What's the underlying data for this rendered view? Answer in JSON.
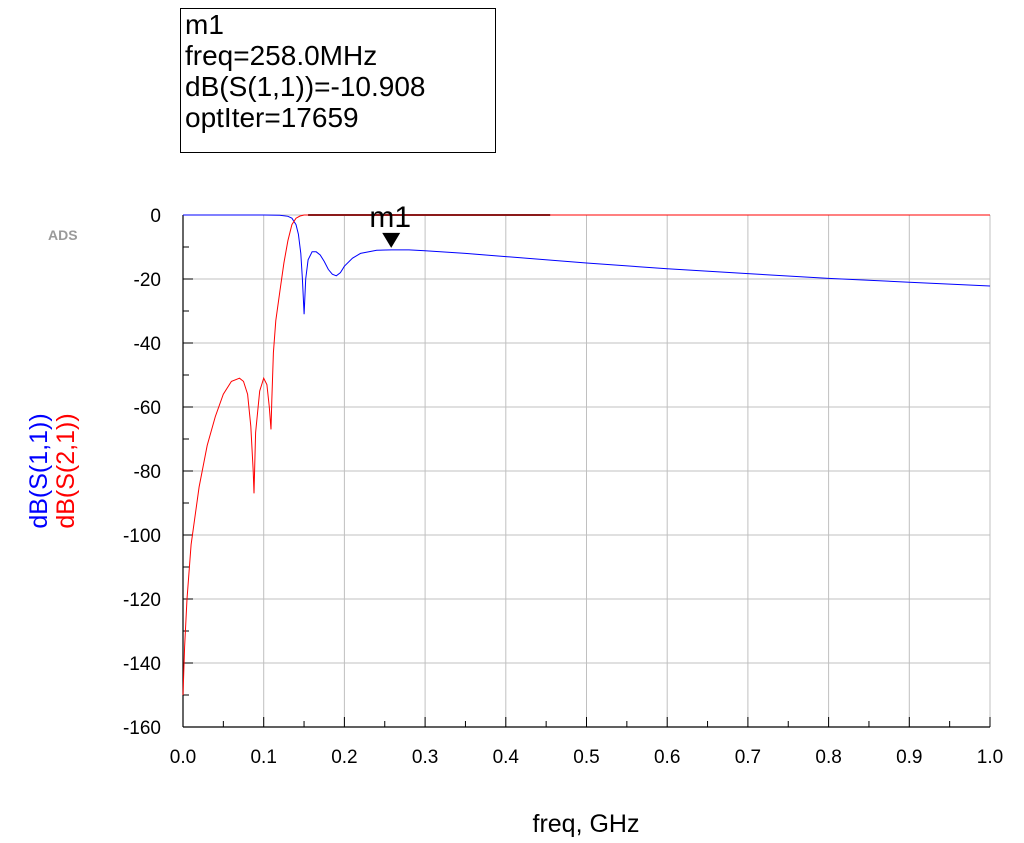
{
  "marker_box": {
    "name": "m1",
    "freq_line": "freq=258.0MHz",
    "value_line": "dB(S(1,1))=-10.908",
    "iter_line": "optIter=17659"
  },
  "watermark": "ADS",
  "colors": {
    "s11": "#0000ff",
    "s21": "#ff0000",
    "s21_dark": "#8b1a1a",
    "grid": "#c0c0c0",
    "axis": "#000000"
  },
  "chart_data": {
    "type": "line",
    "xlabel": "freq, GHz",
    "ylabel_series": [
      "dB(S(1,1))",
      "dB(S(2,1))"
    ],
    "xlim": [
      0.0,
      1.0
    ],
    "ylim": [
      -160,
      0
    ],
    "x_ticks": [
      0.0,
      0.1,
      0.2,
      0.3,
      0.4,
      0.5,
      0.6,
      0.7,
      0.8,
      0.9,
      1.0
    ],
    "x_tick_labels": [
      "0.0",
      "0.1",
      "0.2",
      "0.3",
      "0.4",
      "0.5",
      "0.6",
      "0.7",
      "0.8",
      "0.9",
      "1.0"
    ],
    "y_ticks": [
      0,
      -20,
      -40,
      -60,
      -80,
      -100,
      -120,
      -140,
      -160
    ],
    "y_tick_labels": [
      "0",
      "-20",
      "-40",
      "-60",
      "-80",
      "-100",
      "-120",
      "-140",
      "-160"
    ],
    "grid": true,
    "series": [
      {
        "name": "dB(S(1,1))",
        "color": "#0000ff",
        "x": [
          0.0,
          0.05,
          0.1,
          0.12,
          0.13,
          0.135,
          0.14,
          0.143,
          0.146,
          0.148,
          0.15,
          0.152,
          0.155,
          0.16,
          0.165,
          0.17,
          0.175,
          0.18,
          0.185,
          0.19,
          0.195,
          0.2,
          0.21,
          0.22,
          0.24,
          0.258,
          0.28,
          0.3,
          0.35,
          0.4,
          0.5,
          0.6,
          0.7,
          0.8,
          0.9,
          1.0
        ],
        "y": [
          0,
          0,
          0,
          -0.1,
          -0.4,
          -1,
          -3,
          -6,
          -12,
          -20,
          -31,
          -20,
          -14,
          -11.5,
          -11.5,
          -12.5,
          -14.5,
          -17,
          -18.5,
          -19,
          -18,
          -16,
          -13.5,
          -12,
          -11,
          -10.9,
          -10.9,
          -11.2,
          -12,
          -13,
          -15,
          -16.8,
          -18.3,
          -19.8,
          -21,
          -22.2
        ]
      },
      {
        "name": "dB(S(2,1))",
        "color": "#ff0000",
        "x": [
          0.0,
          0.002,
          0.005,
          0.01,
          0.02,
          0.03,
          0.04,
          0.05,
          0.06,
          0.07,
          0.075,
          0.08,
          0.084,
          0.087,
          0.088,
          0.09,
          0.095,
          0.1,
          0.104,
          0.107,
          0.109,
          0.11,
          0.112,
          0.115,
          0.12,
          0.125,
          0.13,
          0.135,
          0.14,
          0.145,
          0.15,
          0.16,
          0.2,
          0.3,
          0.45,
          0.6,
          0.8,
          1.0
        ],
        "y": [
          -150,
          -135,
          -120,
          -103,
          -85,
          -72,
          -63,
          -56,
          -52,
          -51,
          -52,
          -56,
          -66,
          -80,
          -87,
          -68,
          -55,
          -51,
          -53,
          -60,
          -67,
          -58,
          -43,
          -33,
          -24,
          -15,
          -8,
          -3,
          -1,
          -0.3,
          0,
          0,
          0,
          0,
          0,
          0,
          0,
          0
        ]
      }
    ],
    "markers": [
      {
        "name": "m1",
        "series": "dB(S(1,1))",
        "x": 0.258,
        "y": -10.908
      }
    ]
  }
}
